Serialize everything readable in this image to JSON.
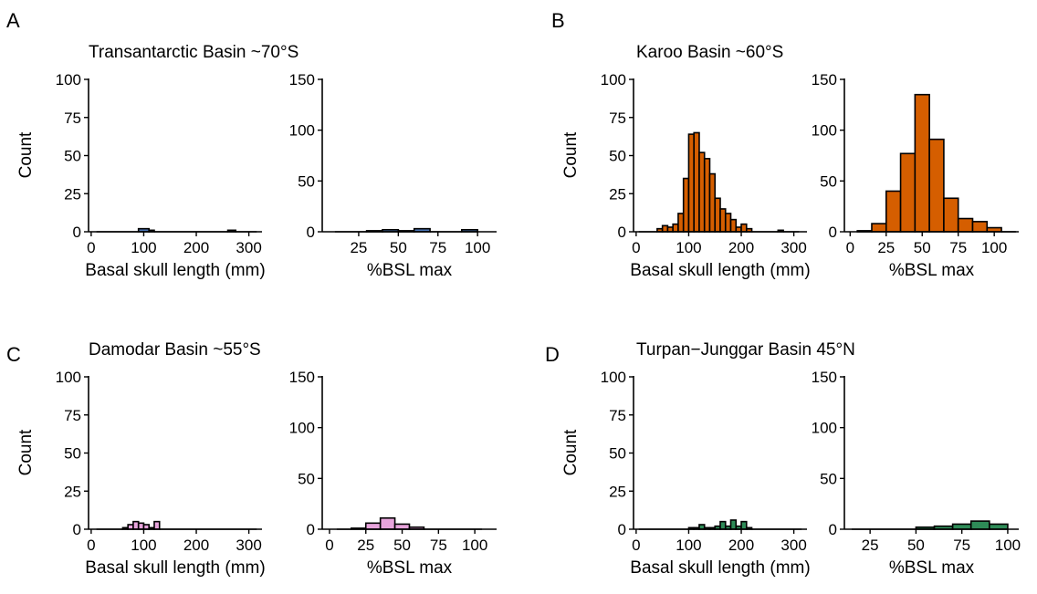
{
  "chart_data": [
    {
      "panel_letter": "A",
      "title": "Transantarctic Basin ~70°S",
      "color": "#4A74B4",
      "charts": [
        {
          "type": "bar",
          "xlabel": "Basal skull length (mm)",
          "ylabel": "Count",
          "xlim": [
            -5,
            325
          ],
          "ylim": [
            0,
            100
          ],
          "xticks": [
            0,
            100,
            200,
            300
          ],
          "yticks": [
            0,
            25,
            50,
            75,
            100
          ],
          "grid": false,
          "bin_width": 10,
          "bins": [
            {
              "x0": 10,
              "x1": 90,
              "count": 0
            },
            {
              "x0": 90,
              "x1": 110,
              "count": 2
            },
            {
              "x0": 110,
              "x1": 120,
              "count": 1
            },
            {
              "x0": 120,
              "x1": 260,
              "count": 0
            },
            {
              "x0": 260,
              "x1": 275,
              "count": 1
            },
            {
              "x0": 275,
              "x1": 315,
              "count": 0
            }
          ]
        },
        {
          "type": "bar",
          "xlabel": "%BSL max",
          "ylabel": "",
          "xlim": [
            2,
            112
          ],
          "ylim": [
            0,
            150
          ],
          "xticks": [
            25,
            50,
            75,
            100
          ],
          "yticks": [
            0,
            50,
            100,
            150
          ],
          "grid": false,
          "bin_width": 10,
          "bins": [
            {
              "x0": 10,
              "x1": 30,
              "count": 0
            },
            {
              "x0": 30,
              "x1": 40,
              "count": 1
            },
            {
              "x0": 40,
              "x1": 50,
              "count": 2
            },
            {
              "x0": 50,
              "x1": 60,
              "count": 1
            },
            {
              "x0": 60,
              "x1": 70,
              "count": 3
            },
            {
              "x0": 70,
              "x1": 90,
              "count": 0
            },
            {
              "x0": 90,
              "x1": 100,
              "count": 2
            }
          ]
        }
      ]
    },
    {
      "panel_letter": "B",
      "title": "Karoo Basin ~60°S",
      "color": "#D55E00",
      "charts": [
        {
          "type": "bar",
          "xlabel": "Basal skull length (mm)",
          "ylabel": "Count",
          "xlim": [
            -5,
            325
          ],
          "ylim": [
            0,
            100
          ],
          "xticks": [
            0,
            100,
            200,
            300
          ],
          "yticks": [
            0,
            25,
            50,
            75,
            100
          ],
          "grid": false,
          "bin_width": 10,
          "bins": [
            {
              "x0": 5,
              "x1": 40,
              "count": 0
            },
            {
              "x0": 40,
              "x1": 50,
              "count": 2
            },
            {
              "x0": 50,
              "x1": 60,
              "count": 4
            },
            {
              "x0": 60,
              "x1": 70,
              "count": 3
            },
            {
              "x0": 70,
              "x1": 80,
              "count": 5
            },
            {
              "x0": 80,
              "x1": 90,
              "count": 12
            },
            {
              "x0": 90,
              "x1": 100,
              "count": 35
            },
            {
              "x0": 100,
              "x1": 110,
              "count": 64
            },
            {
              "x0": 110,
              "x1": 120,
              "count": 65
            },
            {
              "x0": 120,
              "x1": 130,
              "count": 52
            },
            {
              "x0": 130,
              "x1": 140,
              "count": 48
            },
            {
              "x0": 140,
              "x1": 150,
              "count": 38
            },
            {
              "x0": 150,
              "x1": 160,
              "count": 22
            },
            {
              "x0": 160,
              "x1": 170,
              "count": 15
            },
            {
              "x0": 170,
              "x1": 180,
              "count": 12
            },
            {
              "x0": 180,
              "x1": 190,
              "count": 8
            },
            {
              "x0": 190,
              "x1": 200,
              "count": 3
            },
            {
              "x0": 200,
              "x1": 210,
              "count": 5
            },
            {
              "x0": 210,
              "x1": 220,
              "count": 2
            },
            {
              "x0": 220,
              "x1": 270,
              "count": 0
            },
            {
              "x0": 270,
              "x1": 280,
              "count": 1
            },
            {
              "x0": 280,
              "x1": 310,
              "count": 0
            }
          ]
        },
        {
          "type": "bar",
          "xlabel": "%BSL max",
          "ylabel": "",
          "xlim": [
            -4,
            117
          ],
          "ylim": [
            0,
            150
          ],
          "xticks": [
            0,
            25,
            50,
            75,
            100
          ],
          "yticks": [
            0,
            50,
            100,
            150
          ],
          "grid": false,
          "bin_width": 10,
          "bins": [
            {
              "x0": 5,
              "x1": 15,
              "count": 1
            },
            {
              "x0": 15,
              "x1": 25,
              "count": 8
            },
            {
              "x0": 25,
              "x1": 35,
              "count": 40
            },
            {
              "x0": 35,
              "x1": 45,
              "count": 77
            },
            {
              "x0": 45,
              "x1": 55,
              "count": 135
            },
            {
              "x0": 55,
              "x1": 65,
              "count": 91
            },
            {
              "x0": 65,
              "x1": 75,
              "count": 33
            },
            {
              "x0": 75,
              "x1": 85,
              "count": 13
            },
            {
              "x0": 85,
              "x1": 95,
              "count": 10
            },
            {
              "x0": 95,
              "x1": 105,
              "count": 4
            },
            {
              "x0": 105,
              "x1": 115,
              "count": 0
            }
          ]
        }
      ]
    },
    {
      "panel_letter": "C",
      "title": "Damodar Basin ~55°S",
      "color": "#E8A4DC",
      "charts": [
        {
          "type": "bar",
          "xlabel": "Basal skull length (mm)",
          "ylabel": "Count",
          "xlim": [
            -5,
            325
          ],
          "ylim": [
            0,
            100
          ],
          "xticks": [
            0,
            100,
            200,
            300
          ],
          "yticks": [
            0,
            25,
            50,
            75,
            100
          ],
          "grid": false,
          "bin_width": 10,
          "bins": [
            {
              "x0": 10,
              "x1": 60,
              "count": 0
            },
            {
              "x0": 60,
              "x1": 70,
              "count": 1
            },
            {
              "x0": 70,
              "x1": 80,
              "count": 3
            },
            {
              "x0": 80,
              "x1": 90,
              "count": 5
            },
            {
              "x0": 90,
              "x1": 100,
              "count": 4
            },
            {
              "x0": 100,
              "x1": 110,
              "count": 3
            },
            {
              "x0": 110,
              "x1": 120,
              "count": 1
            },
            {
              "x0": 120,
              "x1": 130,
              "count": 5
            },
            {
              "x0": 130,
              "x1": 315,
              "count": 0
            }
          ]
        },
        {
          "type": "bar",
          "xlabel": "%BSL max",
          "ylabel": "",
          "xlim": [
            -5,
            115
          ],
          "ylim": [
            0,
            150
          ],
          "xticks": [
            0,
            25,
            50,
            75,
            100
          ],
          "yticks": [
            0,
            50,
            100,
            150
          ],
          "grid": false,
          "bin_width": 10,
          "bins": [
            {
              "x0": 5,
              "x1": 15,
              "count": 0
            },
            {
              "x0": 15,
              "x1": 25,
              "count": 1
            },
            {
              "x0": 25,
              "x1": 35,
              "count": 6
            },
            {
              "x0": 35,
              "x1": 45,
              "count": 11
            },
            {
              "x0": 45,
              "x1": 55,
              "count": 5
            },
            {
              "x0": 55,
              "x1": 65,
              "count": 2
            },
            {
              "x0": 65,
              "x1": 105,
              "count": 0
            }
          ]
        }
      ]
    },
    {
      "panel_letter": "D",
      "title": "Turpan−Junggar Basin 45°N",
      "color": "#2E8B57",
      "charts": [
        {
          "type": "bar",
          "xlabel": "Basal skull length (mm)",
          "ylabel": "Count",
          "xlim": [
            -5,
            325
          ],
          "ylim": [
            0,
            100
          ],
          "xticks": [
            0,
            100,
            200,
            300
          ],
          "yticks": [
            0,
            25,
            50,
            75,
            100
          ],
          "grid": false,
          "bin_width": 10,
          "bins": [
            {
              "x0": 5,
              "x1": 100,
              "count": 0
            },
            {
              "x0": 100,
              "x1": 110,
              "count": 1
            },
            {
              "x0": 110,
              "x1": 120,
              "count": 1
            },
            {
              "x0": 120,
              "x1": 130,
              "count": 3
            },
            {
              "x0": 130,
              "x1": 140,
              "count": 1
            },
            {
              "x0": 140,
              "x1": 150,
              "count": 1
            },
            {
              "x0": 150,
              "x1": 160,
              "count": 2
            },
            {
              "x0": 160,
              "x1": 170,
              "count": 5
            },
            {
              "x0": 170,
              "x1": 180,
              "count": 2
            },
            {
              "x0": 180,
              "x1": 190,
              "count": 6
            },
            {
              "x0": 190,
              "x1": 200,
              "count": 2
            },
            {
              "x0": 200,
              "x1": 210,
              "count": 5
            },
            {
              "x0": 210,
              "x1": 220,
              "count": 1
            },
            {
              "x0": 220,
              "x1": 315,
              "count": 0
            }
          ]
        },
        {
          "type": "bar",
          "xlabel": "%BSL max",
          "ylabel": "",
          "xlim": [
            11,
            106
          ],
          "ylim": [
            0,
            150
          ],
          "xticks": [
            25,
            50,
            75,
            100
          ],
          "yticks": [
            0,
            50,
            100,
            150
          ],
          "grid": false,
          "bin_width": 10,
          "bins": [
            {
              "x0": 15,
              "x1": 50,
              "count": 0
            },
            {
              "x0": 50,
              "x1": 60,
              "count": 2
            },
            {
              "x0": 60,
              "x1": 70,
              "count": 3
            },
            {
              "x0": 70,
              "x1": 80,
              "count": 5
            },
            {
              "x0": 80,
              "x1": 90,
              "count": 8
            },
            {
              "x0": 90,
              "x1": 100,
              "count": 5
            }
          ]
        }
      ]
    }
  ]
}
